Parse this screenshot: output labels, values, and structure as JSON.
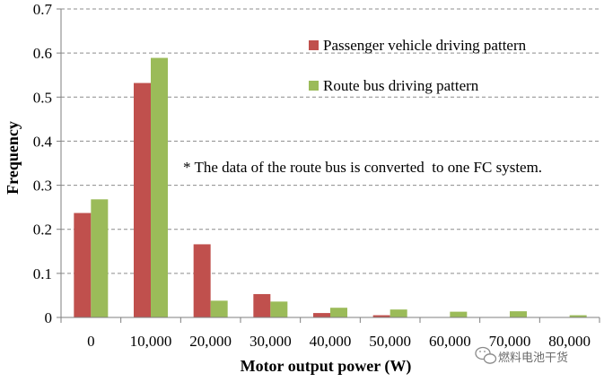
{
  "chart_data": {
    "type": "bar",
    "title": "",
    "xlabel": "Motor output power (W)",
    "ylabel": "Frequency",
    "ylim": [
      0,
      0.7
    ],
    "yticks": [
      "0",
      "0.1",
      "0.2",
      "0.3",
      "0.4",
      "0.5",
      "0.6",
      "0.7"
    ],
    "categories": [
      "0",
      "10,000",
      "20,000",
      "30,000",
      "40,000",
      "50,000",
      "60,000",
      "70,000",
      "80,000"
    ],
    "grid": "horizontal dashed",
    "legend_position": "top-right",
    "series": [
      {
        "name": "Passenger vehicle driving pattern",
        "color": "#c0504d",
        "values": [
          0.237,
          0.532,
          0.166,
          0.053,
          0.01,
          0.005,
          0,
          0,
          0
        ]
      },
      {
        "name": "Route bus driving pattern",
        "color": "#9bbb59",
        "values": [
          0.268,
          0.589,
          0.038,
          0.036,
          0.022,
          0.018,
          0.013,
          0.014,
          0.005
        ]
      }
    ],
    "annotation": "* The data of the route bus is converted  to one FC system."
  },
  "watermark": {
    "text": "燃料电池干货"
  }
}
